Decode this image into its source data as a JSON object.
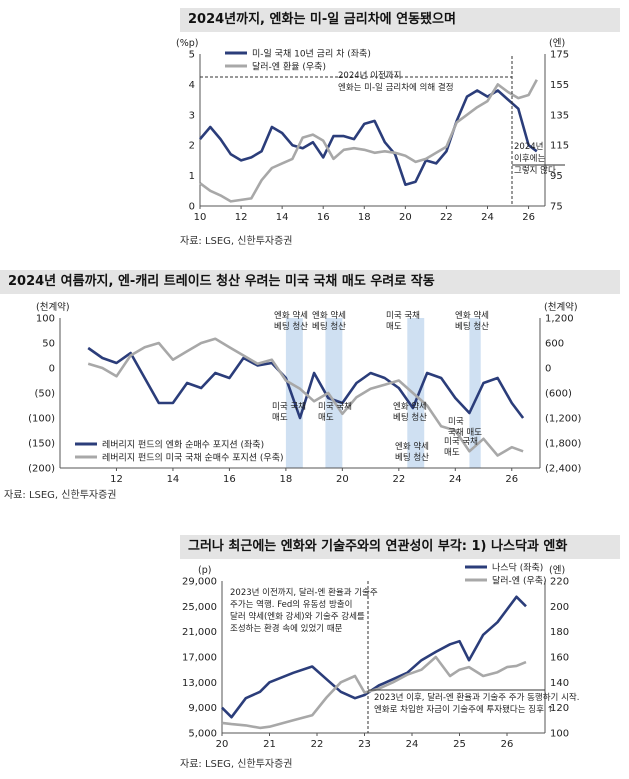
{
  "charts": [
    {
      "title": "2024년까지, 엔화는 미-일 금리차에 연동됐으며",
      "source": "자료: LSEG, 신한투자증권",
      "chart_data": {
        "type": "line",
        "left_unit": "(%p)",
        "right_unit": "(엔)",
        "left_ylim": [
          0,
          5
        ],
        "right_ylim": [
          75,
          175
        ],
        "left_ticks": [
          "0",
          "1",
          "2",
          "3",
          "4",
          "5"
        ],
        "right_ticks": [
          "75",
          "95",
          "115",
          "135",
          "155",
          "175"
        ],
        "xlim": [
          10,
          26.8
        ],
        "x_ticks": [
          "10",
          "12",
          "14",
          "16",
          "18",
          "20",
          "22",
          "24",
          "26"
        ],
        "legend": [
          "미-일 국채 10년 금리 차 (좌축)",
          "달러-엔 환율 (우축)"
        ],
        "annotations": [
          "2024년 이전까지",
          "엔화는 미-일 금리차에 의해 결정",
          "2024년",
          "이후에는",
          "그렇지 않다"
        ],
        "series": [
          {
            "name": "미-일 국채 10년 금리 차 (좌축)",
            "axis": "left",
            "color": "#2b3d7a",
            "x": [
              10,
              10.5,
              11,
              11.5,
              12,
              12.5,
              13,
              13.5,
              14,
              14.5,
              15,
              15.5,
              16,
              16.5,
              17,
              17.5,
              18,
              18.5,
              19,
              19.5,
              20,
              20.5,
              21,
              21.5,
              22,
              22.5,
              23,
              23.5,
              24,
              24.5,
              25,
              25.5,
              26,
              26.4
            ],
            "y": [
              2.2,
              2.6,
              2.2,
              1.7,
              1.5,
              1.6,
              1.8,
              2.6,
              2.4,
              2.0,
              1.9,
              2.1,
              1.6,
              2.3,
              2.3,
              2.2,
              2.7,
              2.8,
              2.1,
              1.7,
              0.7,
              0.8,
              1.5,
              1.4,
              1.8,
              2.8,
              3.6,
              3.8,
              3.6,
              3.8,
              3.5,
              3.2,
              2.0,
              1.8
            ]
          },
          {
            "name": "달러-엔 환율 (우축)",
            "axis": "right",
            "color": "#a8a8a8",
            "x": [
              10,
              10.5,
              11,
              11.5,
              12,
              12.5,
              13,
              13.5,
              14,
              14.5,
              15,
              15.5,
              16,
              16.5,
              17,
              17.5,
              18,
              18.5,
              19,
              19.5,
              20,
              20.5,
              21,
              21.5,
              22,
              22.5,
              23,
              23.5,
              24,
              24.5,
              25,
              25.5,
              26,
              26.4
            ],
            "y": [
              90,
              85,
              82,
              78,
              79,
              80,
              92,
              100,
              103,
              106,
              120,
              122,
              118,
              106,
              112,
              113,
              112,
              110,
              111,
              110,
              108,
              104,
              106,
              110,
              114,
              130,
              135,
              140,
              144,
              155,
              150,
              146,
              148,
              158
            ]
          }
        ]
      }
    },
    {
      "title": "2024년 여름까지, 엔-캐리 트레이드 청산 우려는 미국 국채 매도 우려로 작동",
      "source": "자료: LSEG, 신한투자증권",
      "chart_data": {
        "type": "line",
        "left_unit": "(천계약)",
        "right_unit": "(천계약)",
        "left_ylim": [
          -200,
          100
        ],
        "right_ylim": [
          -2400,
          1200
        ],
        "left_ticks": [
          "(200)",
          "(150)",
          "(100)",
          "(50)",
          "0",
          "50",
          "100"
        ],
        "right_ticks": [
          "(2,400)",
          "(1,800)",
          "(1,200)",
          "(600)",
          "0",
          "600",
          "1,200"
        ],
        "xlim": [
          10,
          27
        ],
        "x_ticks": [
          "12",
          "14",
          "16",
          "18",
          "20",
          "22",
          "24",
          "26"
        ],
        "legend": [
          "레버리지 펀드의 엔화 순매수 포지션 (좌축)",
          "레버리지 펀드의 미국 국채 순매수 포지션 (우축)"
        ],
        "annotations": [
          "엔화 약세",
          "베팅 청산",
          "엔화 약세",
          "베팅 청산",
          "미국 국채",
          "매도",
          "엔화 약세",
          "베팅 청산",
          "미국 국채",
          "매도",
          "미국 국채",
          "매도",
          "엔화 약세",
          "베팅 청산",
          "미국 국채",
          "매도",
          "엔화 약세",
          "베팅 청산",
          "미국",
          "국채 매도"
        ],
        "highlight_bands": [
          [
            18.0,
            18.6
          ],
          [
            19.4,
            20.0
          ],
          [
            22.3,
            22.9
          ],
          [
            24.5,
            24.9
          ]
        ],
        "series": [
          {
            "name": "레버리지 펀드의 엔화 순매수 포지션 (좌축)",
            "axis": "left",
            "color": "#2b3d7a",
            "x": [
              11,
              11.5,
              12,
              12.5,
              13,
              13.5,
              14,
              14.5,
              15,
              15.5,
              16,
              16.5,
              17,
              17.5,
              18,
              18.5,
              19,
              19.5,
              20,
              20.5,
              21,
              21.5,
              22,
              22.5,
              23,
              23.5,
              24,
              24.5,
              25,
              25.5,
              26,
              26.4
            ],
            "y": [
              40,
              20,
              10,
              30,
              -20,
              -70,
              -70,
              -30,
              -40,
              -10,
              -20,
              20,
              5,
              10,
              -20,
              -100,
              -10,
              -60,
              -70,
              -30,
              -10,
              -20,
              -40,
              -80,
              -10,
              -20,
              -60,
              -90,
              -30,
              -20,
              -70,
              -100
            ]
          },
          {
            "name": "레버리지 펀드의 미국 국채 순매수 포지션 (우축)",
            "axis": "right",
            "color": "#a8a8a8",
            "x": [
              11,
              11.5,
              12,
              12.5,
              13,
              13.5,
              14,
              14.5,
              15,
              15.5,
              16,
              16.5,
              17,
              17.5,
              18,
              18.5,
              19,
              19.5,
              20,
              20.5,
              21,
              21.5,
              22,
              22.5,
              23,
              23.5,
              24,
              24.5,
              25,
              25.5,
              26,
              26.4
            ],
            "y": [
              100,
              0,
              -200,
              300,
              500,
              600,
              200,
              400,
              600,
              700,
              500,
              300,
              100,
              200,
              -300,
              -500,
              -800,
              -600,
              -1100,
              -700,
              -500,
              -400,
              -300,
              -600,
              -900,
              -1400,
              -1500,
              -2000,
              -1700,
              -2100,
              -1900,
              -2000
            ]
          }
        ]
      }
    },
    {
      "title": "그러나 최근에는 엔화와 기술주와의 연관성이 부각: 1) 나스닥과 엔화",
      "source": "자료: LSEG, 신한투자증권",
      "chart_data": {
        "type": "line",
        "left_unit": "(p)",
        "right_unit": "(엔)",
        "left_ylim": [
          5000,
          29000
        ],
        "right_ylim": [
          100,
          220
        ],
        "left_ticks": [
          "5,000",
          "9,000",
          "13,000",
          "17,000",
          "21,000",
          "25,000",
          "29,000"
        ],
        "right_ticks": [
          "100",
          "120",
          "140",
          "160",
          "180",
          "200",
          "220"
        ],
        "xlim": [
          20,
          26.8
        ],
        "x_ticks": [
          "20",
          "21",
          "22",
          "23",
          "24",
          "25",
          "26"
        ],
        "legend": [
          "나스닥 (좌축)",
          "달러-엔 (우축)"
        ],
        "annotations": [
          "2023년 이전까지, 달러-엔 환율과 기술주",
          "주가는 역행. Fed의 유동성 방출이",
          "달러 약세(엔화 강세)와 기술주 강세를",
          "조성하는 환경 속에 있었기 때문",
          "2023년 이후, 달러-엔 환율과 기술주 주가 동행하기 시작.",
          "엔화로 차입한 자금이 기술주에 투자됐다는 징후 ↑"
        ],
        "series": [
          {
            "name": "나스닥 (좌축)",
            "axis": "left",
            "color": "#2b3d7a",
            "x": [
              20,
              20.2,
              20.5,
              20.8,
              21,
              21.5,
              21.9,
              22.2,
              22.5,
              22.8,
              23,
              23.3,
              23.6,
              23.9,
              24.2,
              24.5,
              24.8,
              25,
              25.2,
              25.5,
              25.8,
              26,
              26.2,
              26.4
            ],
            "y": [
              9000,
              7500,
              10500,
              11500,
              13000,
              14500,
              15500,
              13500,
              11500,
              10500,
              11000,
              12500,
              13500,
              14500,
              16500,
              17800,
              19000,
              19500,
              16500,
              20500,
              22500,
              24500,
              26500,
              25000
            ]
          },
          {
            "name": "달러-엔 (우축)",
            "axis": "right",
            "color": "#a8a8a8",
            "x": [
              20,
              20.2,
              20.5,
              20.8,
              21,
              21.5,
              21.9,
              22.2,
              22.5,
              22.8,
              23,
              23.3,
              23.6,
              23.9,
              24.2,
              24.5,
              24.8,
              25,
              25.2,
              25.5,
              25.8,
              26,
              26.2,
              26.4
            ],
            "y": [
              108,
              107,
              106,
              104,
              105,
              110,
              114,
              128,
              140,
              145,
              132,
              135,
              140,
              146,
              150,
              160,
              145,
              150,
              152,
              145,
              148,
              152,
              153,
              156
            ]
          }
        ]
      }
    }
  ]
}
